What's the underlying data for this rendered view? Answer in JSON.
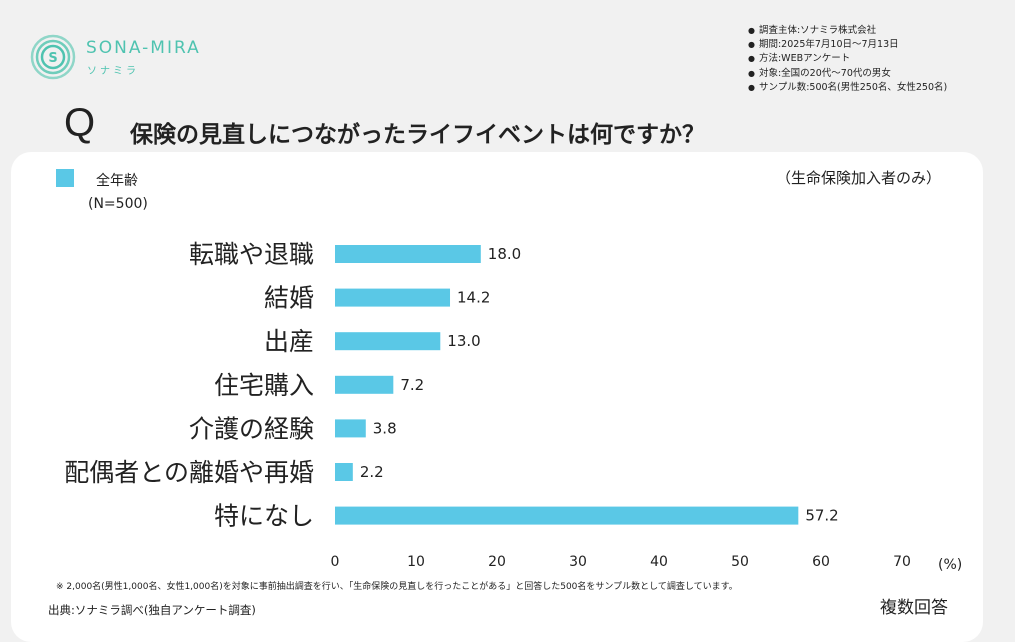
{
  "brand": {
    "name": "SONA-MIRA",
    "sub": "ソナミラ",
    "color": "#4fc3b0"
  },
  "survey_info": [
    "調査主体:ソナミラ株式会社",
    "期間:2025年7月10日〜7月13日",
    "方法:WEBアンケート",
    "対象:全国の20代〜70代の男女",
    "サンプル数:500名(男性250名、女性250名)"
  ],
  "question": {
    "mark": "Q",
    "text": "保険の見直しにつながったライフイベントは何ですか？"
  },
  "legend": {
    "label": "全年齢",
    "n": "(N=500)",
    "color": "#5ac8e6"
  },
  "scope": "（生命保険加入者のみ）",
  "chart_data": {
    "type": "bar",
    "orientation": "horizontal",
    "categories": [
      "転職や退職",
      "結婚",
      "出産",
      "住宅購入",
      "介護の経験",
      "配偶者との離婚や再婚",
      "特になし"
    ],
    "series": [
      {
        "name": "全年齢",
        "values": [
          18.0,
          14.2,
          13.0,
          7.2,
          3.8,
          2.2,
          57.2
        ]
      }
    ],
    "value_labels": [
      "18.0",
      "14.2",
      "13.0",
      "7.2",
      "3.8",
      "2.2",
      "57.2"
    ],
    "xlim": [
      0,
      70
    ],
    "xticks": [
      0,
      10,
      20,
      30,
      40,
      50,
      60,
      70
    ],
    "xlabel": "(%)",
    "grid": false
  },
  "footer": {
    "note": "※ 2,000名(男性1,000名、女性1,000名)を対象に事前抽出調査を行い、「生命保険の見直しを行ったことがある」と回答した500名をサンプル数として調査しています。",
    "source": "出典:ソナミラ調べ(独自アンケート調査)",
    "multi": "複数回答"
  }
}
